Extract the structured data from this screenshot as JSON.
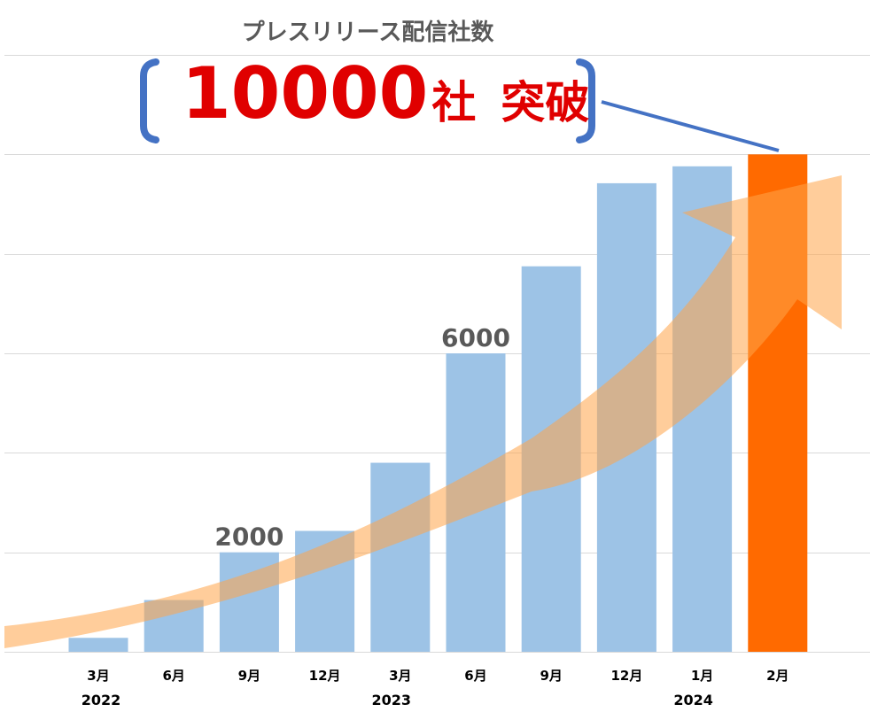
{
  "chart_data": {
    "type": "bar",
    "title": "プレスリリース配信社数",
    "headline": {
      "number": "10000",
      "unit": "社",
      "word": "突破"
    },
    "categories": [
      "3月",
      "6月",
      "9月",
      "12月",
      "3月",
      "6月",
      "9月",
      "12月",
      "1月",
      "2月"
    ],
    "year_labels": [
      {
        "label": "2022",
        "category_index": 0
      },
      {
        "label": "2023",
        "category_index": 4
      },
      {
        "label": "2024",
        "category_index": 8
      }
    ],
    "values": [
      280,
      1040,
      2000,
      2430,
      3800,
      6000,
      7750,
      9420,
      9760,
      10000
    ],
    "data_labels": [
      {
        "category_index": 2,
        "text": "2000"
      },
      {
        "category_index": 5,
        "text": "6000"
      }
    ],
    "highlight_index": 9,
    "ylim": [
      0,
      12000
    ],
    "gridlines": [
      0,
      2000,
      4000,
      6000,
      8000,
      10000,
      12000
    ],
    "grid": true,
    "trend_arrow": true,
    "colors": {
      "bar": "#9dc3e6",
      "highlight_bar": "#ff6a00",
      "arrow": "#ffa449",
      "headline_text": "#e00000",
      "bracket": "#4472c4",
      "title_text": "#595959",
      "data_label_text": "#595959",
      "grid": "#d9d9d9"
    }
  }
}
